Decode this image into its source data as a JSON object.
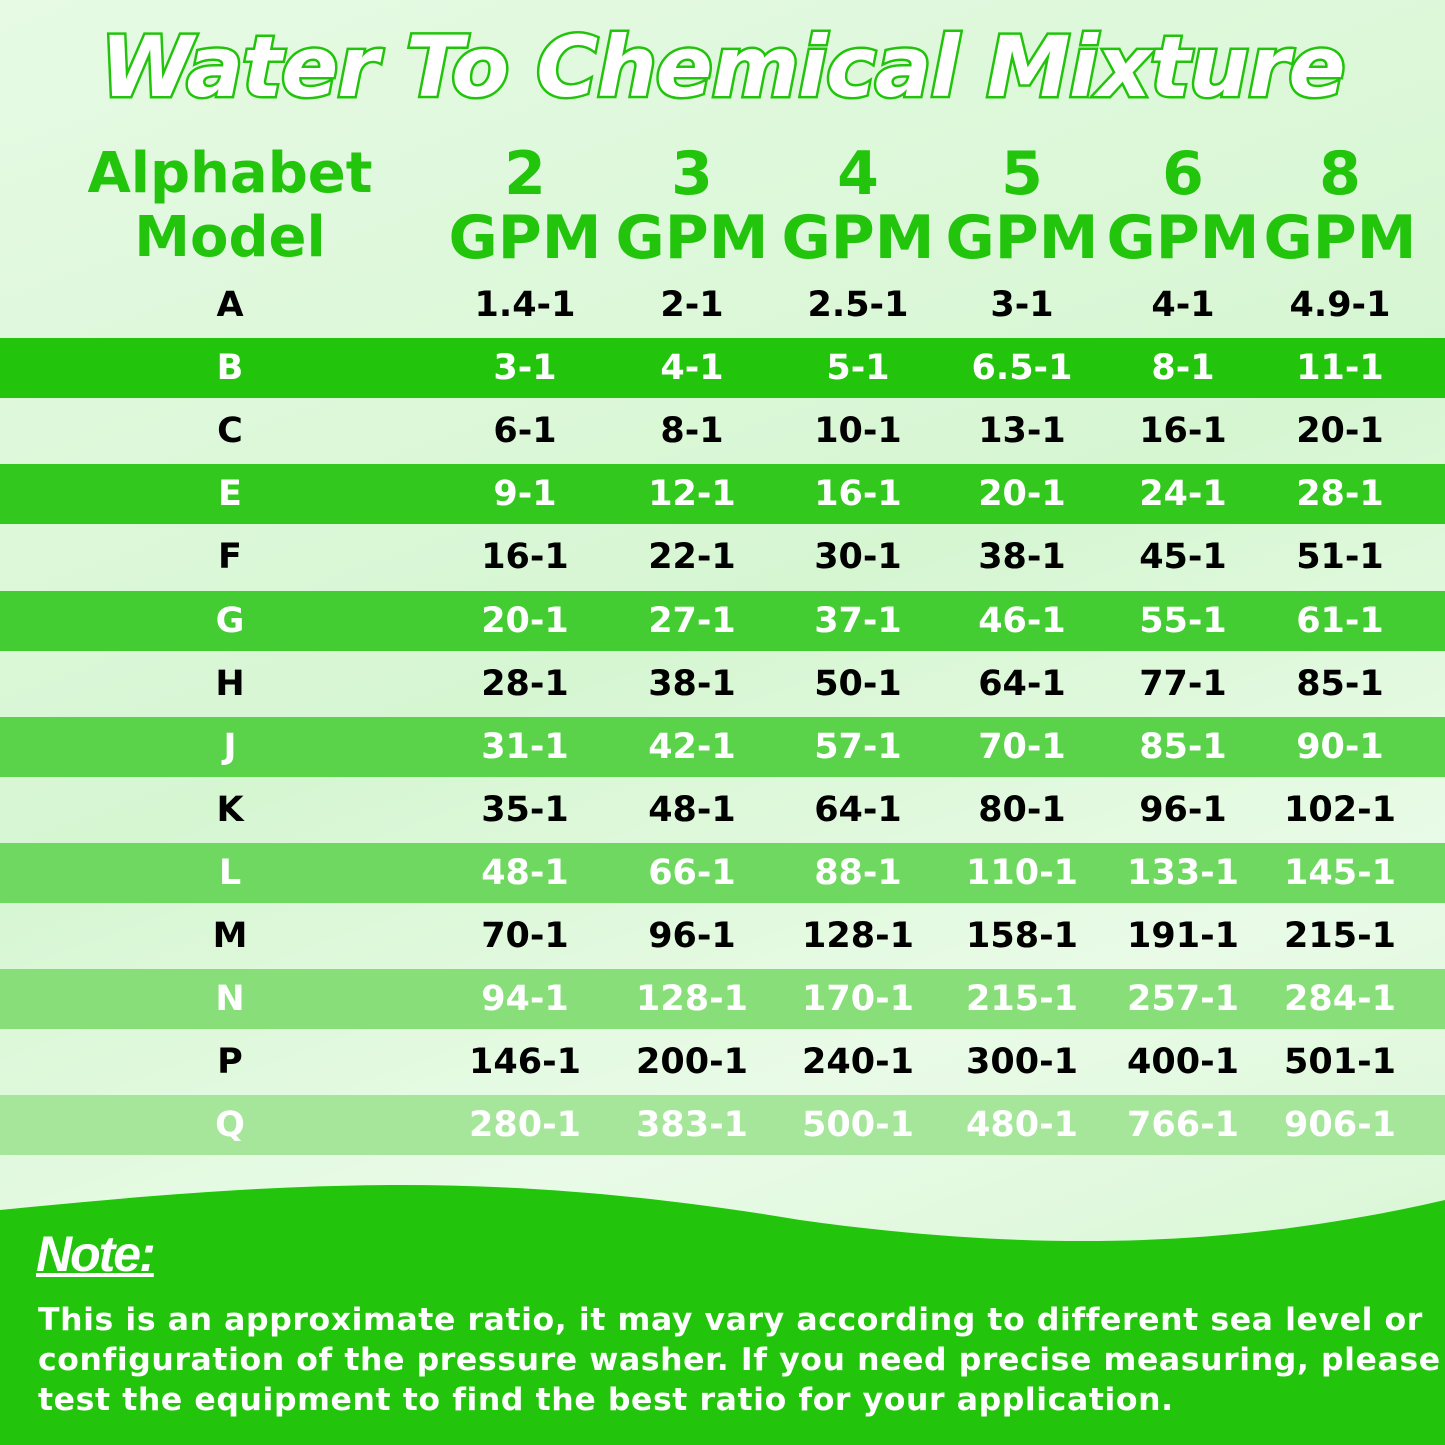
{
  "title": "Water To Chemical Mixture",
  "table": {
    "header": [
      [
        "Alphabet",
        "Model"
      ],
      [
        "2",
        "GPM"
      ],
      [
        "3",
        "GPM"
      ],
      [
        "4",
        "GPM"
      ],
      [
        "5",
        "GPM"
      ],
      [
        "6",
        "GPM"
      ],
      [
        "8",
        "GPM"
      ]
    ],
    "rows": [
      [
        "A",
        "1.4-1",
        "2-1",
        "2.5-1",
        "3-1",
        "4-1",
        "4.9-1"
      ],
      [
        "B",
        "3-1",
        "4-1",
        "5-1",
        "6.5-1",
        "8-1",
        "11-1"
      ],
      [
        "C",
        "6-1",
        "8-1",
        "10-1",
        "13-1",
        "16-1",
        "20-1"
      ],
      [
        "E",
        "9-1",
        "12-1",
        "16-1",
        "20-1",
        "24-1",
        "28-1"
      ],
      [
        "F",
        "16-1",
        "22-1",
        "30-1",
        "38-1",
        "45-1",
        "51-1"
      ],
      [
        "G",
        "20-1",
        "27-1",
        "37-1",
        "46-1",
        "55-1",
        "61-1"
      ],
      [
        "H",
        "28-1",
        "38-1",
        "50-1",
        "64-1",
        "77-1",
        "85-1"
      ],
      [
        "J",
        "31-1",
        "42-1",
        "57-1",
        "70-1",
        "85-1",
        "90-1"
      ],
      [
        "K",
        "35-1",
        "48-1",
        "64-1",
        "80-1",
        "96-1",
        "102-1"
      ],
      [
        "L",
        "48-1",
        "66-1",
        "88-1",
        "110-1",
        "133-1",
        "145-1"
      ],
      [
        "M",
        "70-1",
        "96-1",
        "128-1",
        "158-1",
        "191-1",
        "215-1"
      ],
      [
        "N",
        "94-1",
        "128-1",
        "170-1",
        "215-1",
        "257-1",
        "284-1"
      ],
      [
        "P",
        "146-1",
        "200-1",
        "240-1",
        "300-1",
        "400-1",
        "501-1"
      ],
      [
        "Q",
        "280-1",
        "383-1",
        "500-1",
        "480-1",
        "766-1",
        "906-1"
      ]
    ]
  },
  "note": {
    "heading": "Note:",
    "lines": [
      "This is an approximate ratio, it may vary according to different sea level or",
      "configuration of the pressure washer. If you need precise measuring, please",
      "test the equipment to find the best ratio for your application."
    ]
  }
}
